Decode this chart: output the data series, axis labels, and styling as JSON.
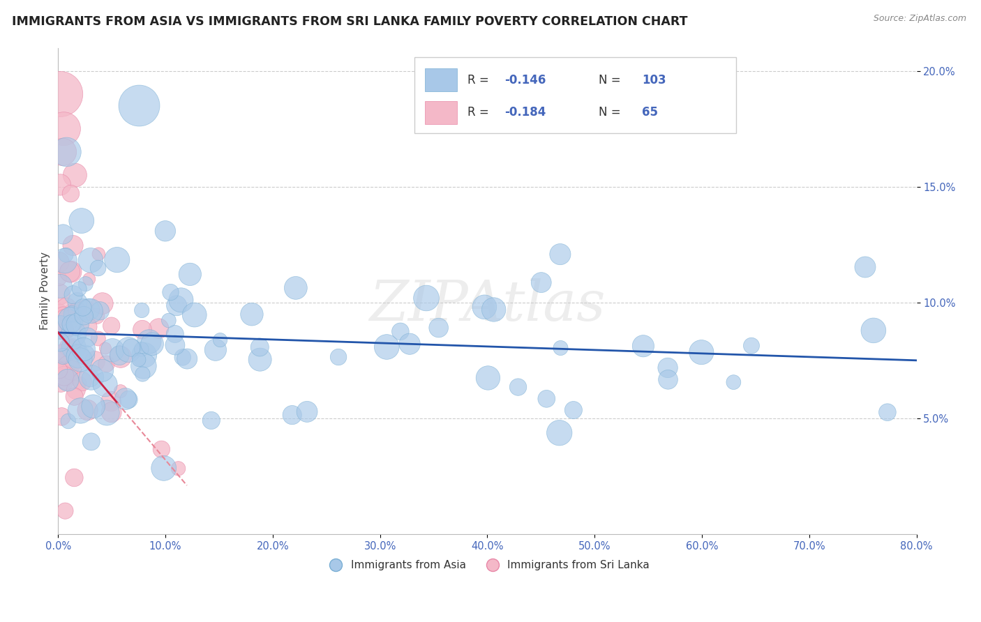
{
  "title": "IMMIGRANTS FROM ASIA VS IMMIGRANTS FROM SRI LANKA FAMILY POVERTY CORRELATION CHART",
  "source_text": "Source: ZipAtlas.com",
  "ylabel": "Family Poverty",
  "watermark": "ZIPAtlas",
  "background_color": "#ffffff",
  "legend_R1": "-0.146",
  "legend_N1": "103",
  "legend_R2": "-0.184",
  "legend_N2": "65",
  "asia_color": "#a8c8e8",
  "asia_edge_color": "#7aafd4",
  "srilanka_color": "#f4b8c8",
  "srilanka_edge_color": "#e888a8",
  "trend_asia_color": "#2255aa",
  "trend_srilanka_solid_color": "#cc2244",
  "trend_srilanka_dash_color": "#e88898",
  "xmin": 0.0,
  "xmax": 0.8,
  "ymin": 0.0,
  "ymax": 0.21,
  "yticks": [
    0.05,
    0.1,
    0.15,
    0.2
  ],
  "ytick_labels": [
    "5.0%",
    "10.0%",
    "15.0%",
    "20.0%"
  ],
  "xticks": [
    0.0,
    0.1,
    0.2,
    0.3,
    0.4,
    0.5,
    0.6,
    0.7,
    0.8
  ],
  "xtick_labels": [
    "0.0%",
    "10.0%",
    "20.0%",
    "30.0%",
    "40.0%",
    "50.0%",
    "60.0%",
    "70.0%",
    "80.0%"
  ],
  "tick_color": "#4466bb",
  "legend_label1": "Immigrants from Asia",
  "legend_label2": "Immigrants from Sri Lanka"
}
